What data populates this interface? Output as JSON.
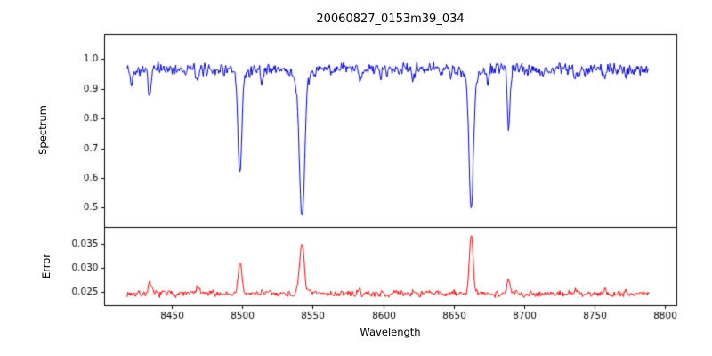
{
  "figure": {
    "title": "20060827_0153m39_034",
    "xlabel": "Wavelength",
    "ylabel_top": "Spectrum",
    "ylabel_bottom": "Error"
  },
  "chart_data": {
    "type": "line",
    "title": "20060827_0153m39_034",
    "xlabel": "Wavelength",
    "grid": false,
    "legend": "none",
    "x_range": [
      8418,
      8788
    ],
    "x_step": 0.5,
    "xlim": [
      8402,
      8808
    ],
    "x_ticks": [
      8450,
      8500,
      8550,
      8600,
      8650,
      8700,
      8750,
      8800
    ],
    "panels": [
      {
        "name": "spectrum",
        "ylabel": "Spectrum",
        "color": "#0000dd",
        "ylim": [
          0.435,
          1.085
        ],
        "y_ticks": [
          0.5,
          0.6,
          0.7,
          0.8,
          0.9,
          1.0
        ],
        "tick_decimals": 1,
        "continuum": 0.968,
        "noise_amp": 0.024,
        "seed": 42,
        "absorption_lines": [
          {
            "center": 8421.0,
            "depth": 0.06,
            "sigma": 0.8
          },
          {
            "center": 8434.0,
            "depth": 0.09,
            "sigma": 1.0
          },
          {
            "center": 8468.0,
            "depth": 0.055,
            "sigma": 0.9
          },
          {
            "center": 8498.0,
            "depth": 0.32,
            "sigma": 1.3
          },
          {
            "center": 8498.0,
            "depth": 0.04,
            "sigma": 3.5
          },
          {
            "center": 8514.0,
            "depth": 0.045,
            "sigma": 0.8
          },
          {
            "center": 8542.1,
            "depth": 0.455,
            "sigma": 1.8
          },
          {
            "center": 8542.1,
            "depth": 0.05,
            "sigma": 5.0
          },
          {
            "center": 8583.0,
            "depth": 0.035,
            "sigma": 0.8
          },
          {
            "center": 8598.0,
            "depth": 0.03,
            "sigma": 0.7
          },
          {
            "center": 8621.0,
            "depth": 0.035,
            "sigma": 0.8
          },
          {
            "center": 8648.0,
            "depth": 0.03,
            "sigma": 0.7
          },
          {
            "center": 8662.1,
            "depth": 0.43,
            "sigma": 1.5
          },
          {
            "center": 8662.1,
            "depth": 0.045,
            "sigma": 4.5
          },
          {
            "center": 8674.0,
            "depth": 0.04,
            "sigma": 0.8
          },
          {
            "center": 8688.6,
            "depth": 0.195,
            "sigma": 1.0
          },
          {
            "center": 8713.0,
            "depth": 0.03,
            "sigma": 0.7
          },
          {
            "center": 8736.0,
            "depth": 0.035,
            "sigma": 0.8
          },
          {
            "center": 8757.0,
            "depth": 0.04,
            "sigma": 0.8
          },
          {
            "center": 8772.0,
            "depth": 0.03,
            "sigma": 0.7
          }
        ]
      },
      {
        "name": "error",
        "ylabel": "Error",
        "color": "#ff0000",
        "ylim": [
          0.0223,
          0.0385
        ],
        "y_ticks": [
          0.025,
          0.03,
          0.035
        ],
        "tick_decimals": 3,
        "baseline": 0.0248,
        "noise_amp": 0.0008,
        "seed": 7,
        "emission_peaks": [
          {
            "center": 8434.0,
            "height": 0.002,
            "sigma": 1.1
          },
          {
            "center": 8468.0,
            "height": 0.0014,
            "sigma": 0.9
          },
          {
            "center": 8498.0,
            "height": 0.0068,
            "sigma": 1.2
          },
          {
            "center": 8514.0,
            "height": 0.0006,
            "sigma": 0.8
          },
          {
            "center": 8542.1,
            "height": 0.0105,
            "sigma": 1.6
          },
          {
            "center": 8583.0,
            "height": 0.0005,
            "sigma": 0.8
          },
          {
            "center": 8621.0,
            "height": 0.0005,
            "sigma": 0.8
          },
          {
            "center": 8662.1,
            "height": 0.0122,
            "sigma": 1.3
          },
          {
            "center": 8688.6,
            "height": 0.003,
            "sigma": 1.0
          },
          {
            "center": 8736.0,
            "height": 0.0006,
            "sigma": 0.8
          },
          {
            "center": 8757.0,
            "height": 0.0009,
            "sigma": 0.8
          },
          {
            "center": 8772.0,
            "height": 0.0006,
            "sigma": 0.7
          }
        ]
      }
    ]
  }
}
